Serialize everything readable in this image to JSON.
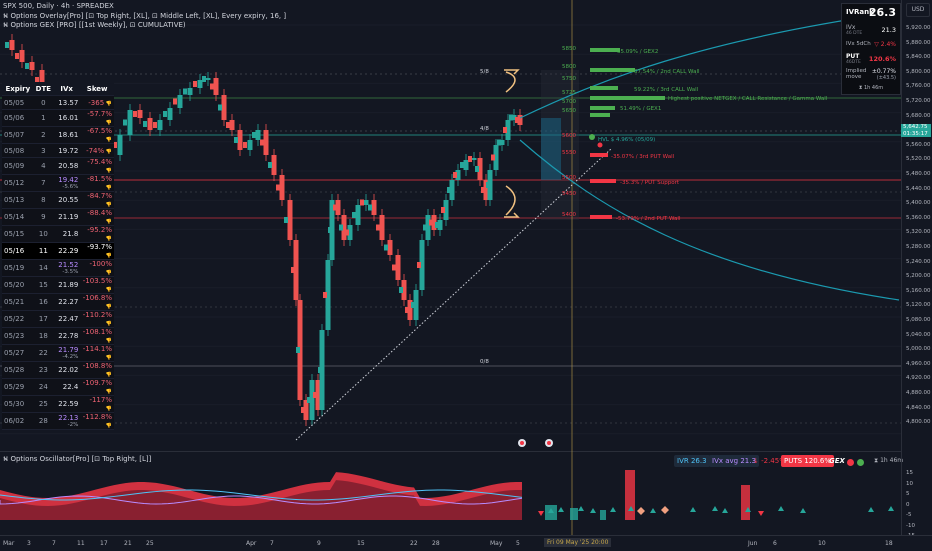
{
  "header": {
    "line1": "SPX 500, Daily · 4h · SPREADEX",
    "line2": "⛕ Options Overlay[Pro] [⊡ Top Right, [XL], ⊡ Middle Left, [XL], Every expiry, 16, ]",
    "line3": "⛕ Options GEX [PRO] [[1st Weekly], ⊡ CUMULATIVE)",
    "currency": "USD",
    "currency_btn2": "⊟"
  },
  "ivr_panel": {
    "ivrank_label": "IVRank",
    "ivrank_value": "26.3",
    "ivx_label": "IVx",
    "ivx_sub": "46 DTE",
    "ivx_value": "21.3",
    "ivx5d_label": "IVx 5dCh",
    "ivx5d_value": "▽ 2.4%",
    "put_label": "PUT",
    "put_sub": "46DTE",
    "put_value": "120.6%",
    "implied_label": "Implied move",
    "implied_value": "±0.77%",
    "implied_sub": "(±43.5)",
    "timer": "⧗ 1h 46m"
  },
  "ivx_table": {
    "headers": [
      "Expiry",
      "DTE",
      "IVx",
      "Skew"
    ],
    "rows": [
      {
        "exp": "05/05",
        "dte": "0",
        "iv": "13.57",
        "sub": "",
        "skew": "-365"
      },
      {
        "exp": "05/06",
        "dte": "1",
        "iv": "16.01",
        "sub": "",
        "skew": "-57.7%"
      },
      {
        "exp": "05/07",
        "dte": "2",
        "iv": "18.61",
        "sub": "",
        "skew": "-67.5%"
      },
      {
        "exp": "05/08",
        "dte": "3",
        "iv": "19.72",
        "sub": "",
        "skew": "-74%"
      },
      {
        "exp": "05/09",
        "dte": "4",
        "iv": "20.58",
        "sub": "",
        "skew": "-75.4%"
      },
      {
        "exp": "05/12",
        "dte": "7",
        "iv": "19.42",
        "sub": "-5.6%",
        "skew": "-81.5%"
      },
      {
        "exp": "05/13",
        "dte": "8",
        "iv": "20.55",
        "sub": "",
        "skew": "-84.7%"
      },
      {
        "exp": "05/14",
        "dte": "9",
        "iv": "21.19",
        "sub": "",
        "skew": "-88.4%"
      },
      {
        "exp": "05/15",
        "dte": "10",
        "iv": "21.8",
        "sub": "",
        "skew": "-95.2%"
      },
      {
        "exp": "05/16",
        "dte": "11",
        "iv": "22.29",
        "sub": "",
        "skew": "-93.7%"
      },
      {
        "exp": "05/19",
        "dte": "14",
        "iv": "21.52",
        "sub": "-3.5%",
        "skew": "-100%"
      },
      {
        "exp": "05/20",
        "dte": "15",
        "iv": "21.89",
        "sub": "",
        "skew": "-103.5%"
      },
      {
        "exp": "05/21",
        "dte": "16",
        "iv": "22.27",
        "sub": "",
        "skew": "-106.8%"
      },
      {
        "exp": "05/22",
        "dte": "17",
        "iv": "22.47",
        "sub": "",
        "skew": "-110.2%"
      },
      {
        "exp": "05/23",
        "dte": "18",
        "iv": "22.78",
        "sub": "",
        "skew": "-108.1%"
      },
      {
        "exp": "05/27",
        "dte": "22",
        "iv": "21.79",
        "sub": "-4.2%",
        "skew": "-114.1%"
      },
      {
        "exp": "05/28",
        "dte": "23",
        "iv": "22.02",
        "sub": "",
        "skew": "-108.8%"
      },
      {
        "exp": "05/29",
        "dte": "24",
        "iv": "22.4",
        "sub": "",
        "skew": "-109.7%"
      },
      {
        "exp": "05/30",
        "dte": "25",
        "iv": "22.59",
        "sub": "",
        "skew": "-117%"
      },
      {
        "exp": "06/02",
        "dte": "28",
        "iv": "22.13",
        "sub": "-2%",
        "skew": "-112.8%"
      }
    ]
  },
  "price_axis": [
    "5,920.00",
    "5,880.00",
    "5,840.00",
    "5,800.00",
    "5,760.00",
    "5,720.00",
    "5,680.00",
    "5,642.75",
    "5,600.00",
    "5,560.00",
    "5,520.00",
    "5,480.00",
    "5,440.00",
    "5,400.00",
    "5,360.00",
    "5,320.00",
    "5,280.00",
    "5,240.00",
    "5,200.00",
    "5,160.00",
    "5,120.00",
    "5,080.00",
    "5,040.00",
    "5,000.00",
    "4,960.00",
    "4,920.00",
    "4,880.00",
    "4,840.00",
    "4,800.00"
  ],
  "current_price": "5,642.75",
  "current_price_sub": "01:35:17",
  "fib_labels": [
    "5/8",
    "4/8",
    "0/8"
  ],
  "level_labels": [
    {
      "text": "35.09% / GEX2",
      "color": "#4caf50"
    },
    {
      "text": "37.54% / 2nd CALL Wall",
      "color": "#4caf50"
    },
    {
      "text": "59.22% / 3rd CALL Wall",
      "color": "#4caf50"
    },
    {
      "text": "Highest positive NETGEX / CALL Resistance / Gamma Wall",
      "color": "#4caf50"
    },
    {
      "text": "51.49% / GEX1",
      "color": "#4caf50"
    },
    {
      "text": "HVL $  4.96% (05/09)",
      "color": "#26a69a"
    },
    {
      "text": "-35.07% / 3rd PUT Wall",
      "color": "#f23645"
    },
    {
      "text": "-35.3% / PUT Support",
      "color": "#f23645"
    },
    {
      "text": "-53.79% / 2nd PUT Wall",
      "color": "#f23645"
    }
  ],
  "strike_labels": [
    "5850",
    "5800",
    "5750",
    "5725",
    "5700",
    "5650",
    "5600",
    "5550",
    "5500",
    "5450",
    "5400"
  ],
  "oscillator": {
    "title": "⛕ Options Oscillator[Pro] [⊡ Top Right, [L]]",
    "ivr": "IVR 26.3",
    "ivx_avg": "IVx avg 21.3",
    "change": "↓ -2.45%",
    "puts": "PUTS 120.6%",
    "gex": "GEX",
    "timer": "⧗ 1h 46m",
    "axis": [
      "15",
      "10",
      "5",
      "0",
      "-5",
      "-10",
      "-15"
    ]
  },
  "date_axis": [
    "Mar",
    "3",
    "7",
    "11",
    "17",
    "21",
    "25",
    "Apr",
    "7",
    "9",
    "15",
    "22",
    "28",
    "May",
    "5",
    "Jun",
    "6",
    "10",
    "18"
  ],
  "date_marker": "Fri 09 May '25   20:00",
  "colors": {
    "bg": "#131722",
    "up": "#26a69a",
    "down": "#ef5350",
    "red_bar": "#f23645",
    "grid": "#1e222d"
  }
}
